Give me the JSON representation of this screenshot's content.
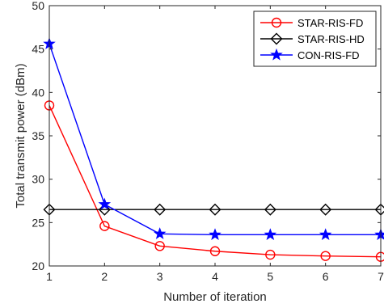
{
  "chart_data": {
    "type": "line",
    "xlabel": "Number of iteration",
    "ylabel": "Total transmit power (dBm)",
    "xlim": [
      1,
      7
    ],
    "ylim": [
      20,
      50
    ],
    "xticks": [
      1,
      2,
      3,
      4,
      5,
      6,
      7
    ],
    "yticks": [
      20,
      25,
      30,
      35,
      40,
      45,
      50
    ],
    "grid": false,
    "legend_position": "top-right",
    "x": [
      1,
      2,
      3,
      4,
      5,
      6,
      7
    ],
    "series": [
      {
        "name": "STAR-RIS-FD",
        "color": "#ff0000",
        "marker": "circle",
        "values": [
          38.5,
          24.6,
          22.3,
          21.7,
          21.3,
          21.15,
          21.05
        ]
      },
      {
        "name": "STAR-RIS-HD",
        "color": "#000000",
        "marker": "diamond",
        "values": [
          26.5,
          26.5,
          26.5,
          26.5,
          26.5,
          26.5,
          26.5
        ]
      },
      {
        "name": "CON-RIS-FD",
        "color": "#0000ff",
        "marker": "star",
        "values": [
          45.6,
          27.1,
          23.7,
          23.6,
          23.6,
          23.6,
          23.6
        ]
      }
    ]
  }
}
